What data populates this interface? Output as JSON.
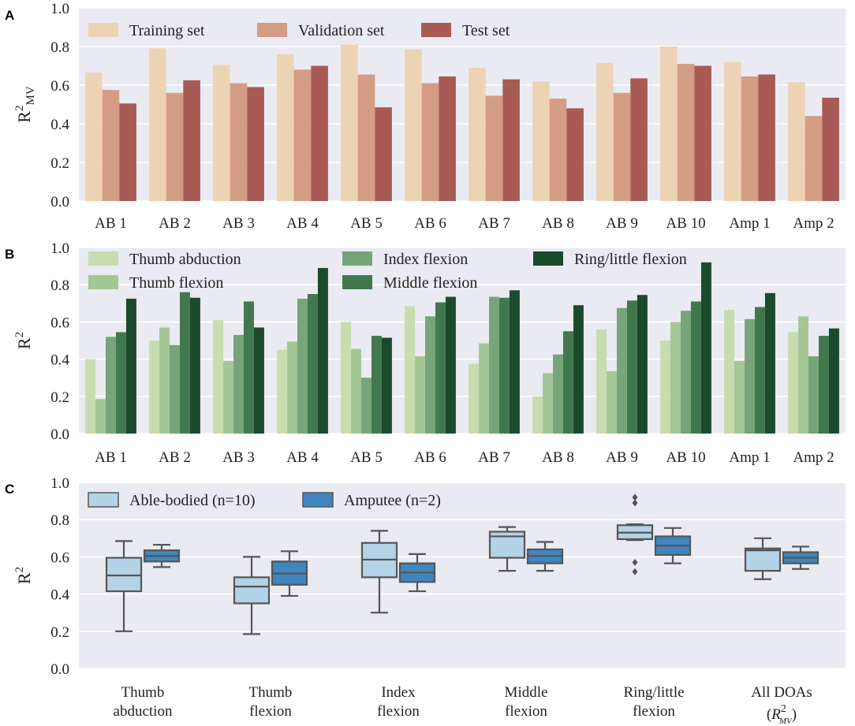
{
  "chart_data": [
    {
      "panel": "A",
      "type": "bar",
      "ylabel": "R",
      "ylabel_sup": "2",
      "ylabel_sub": "MV",
      "ylim": [
        0,
        1.0
      ],
      "yticks": [
        "0.0",
        "0.2",
        "0.4",
        "0.6",
        "0.8",
        "1.0"
      ],
      "grid": true,
      "legend_position": "top",
      "categories": [
        "AB 1",
        "AB 2",
        "AB 3",
        "AB 4",
        "AB 5",
        "AB 6",
        "AB 7",
        "AB 8",
        "AB 9",
        "AB 10",
        "Amp 1",
        "Amp 2"
      ],
      "series": [
        {
          "name": "Training set",
          "color": "#ecd3b4",
          "values": [
            0.665,
            0.79,
            0.705,
            0.76,
            0.81,
            0.785,
            0.69,
            0.62,
            0.715,
            0.8,
            0.72,
            0.615
          ]
        },
        {
          "name": "Validation set",
          "color": "#d59c84",
          "values": [
            0.575,
            0.56,
            0.61,
            0.68,
            0.655,
            0.61,
            0.545,
            0.53,
            0.56,
            0.71,
            0.645,
            0.44
          ]
        },
        {
          "name": "Test set",
          "color": "#a85a54",
          "values": [
            0.505,
            0.625,
            0.59,
            0.7,
            0.485,
            0.645,
            0.63,
            0.48,
            0.635,
            0.7,
            0.655,
            0.535
          ]
        }
      ]
    },
    {
      "panel": "B",
      "type": "bar",
      "ylabel": "R",
      "ylabel_sup": "2",
      "ylim": [
        0,
        1.0
      ],
      "yticks": [
        "0.0",
        "0.2",
        "0.4",
        "0.6",
        "0.8",
        "1.0"
      ],
      "grid": true,
      "legend_position": "top",
      "categories": [
        "AB 1",
        "AB 2",
        "AB 3",
        "AB 4",
        "AB 5",
        "AB 6",
        "AB 7",
        "AB 8",
        "AB 9",
        "AB 10",
        "Amp 1",
        "Amp 2"
      ],
      "series": [
        {
          "name": "Thumb abduction",
          "color": "#c8dcb0",
          "values": [
            0.4,
            0.5,
            0.61,
            0.45,
            0.6,
            0.685,
            0.375,
            0.2,
            0.56,
            0.5,
            0.665,
            0.545
          ]
        },
        {
          "name": "Thumb flexion",
          "color": "#a3c795",
          "values": [
            0.185,
            0.57,
            0.39,
            0.495,
            0.455,
            0.415,
            0.485,
            0.325,
            0.335,
            0.6,
            0.39,
            0.63
          ]
        },
        {
          "name": "Index flexion",
          "color": "#76a57a",
          "values": [
            0.52,
            0.475,
            0.53,
            0.725,
            0.3,
            0.63,
            0.735,
            0.425,
            0.675,
            0.66,
            0.615,
            0.415
          ]
        },
        {
          "name": "Middle flexion",
          "color": "#42784d",
          "values": [
            0.545,
            0.76,
            0.71,
            0.75,
            0.525,
            0.705,
            0.73,
            0.55,
            0.715,
            0.71,
            0.68,
            0.525
          ]
        },
        {
          "name": "Ring/little flexion",
          "color": "#1c4a2c",
          "values": [
            0.725,
            0.73,
            0.57,
            0.89,
            0.515,
            0.735,
            0.77,
            0.69,
            0.745,
            0.92,
            0.755,
            0.565
          ]
        }
      ]
    },
    {
      "panel": "C",
      "type": "box",
      "ylabel": "R",
      "ylabel_sup": "2",
      "ylim": [
        0,
        1.0
      ],
      "yticks": [
        "0.0",
        "0.2",
        "0.4",
        "0.6",
        "0.8",
        "1.0"
      ],
      "grid": true,
      "legend_position": "top-left",
      "categories": [
        {
          "lines": [
            "Thumb",
            "abduction"
          ]
        },
        {
          "lines": [
            "Thumb",
            "flexion"
          ]
        },
        {
          "lines": [
            "Index",
            "flexion"
          ]
        },
        {
          "lines": [
            "Middle",
            "flexion"
          ]
        },
        {
          "lines": [
            "Ring/little",
            "flexion"
          ]
        },
        {
          "lines": [
            "All DOAs"
          ],
          "math": {
            "base": "R",
            "sup": "2",
            "sub": "MV"
          }
        }
      ],
      "series": [
        {
          "name": "Able-bodied (n=10)",
          "color": "#b3d3e6",
          "boxes": [
            {
              "whisker_low": 0.2,
              "q1": 0.415,
              "median": 0.5,
              "q3": 0.595,
              "whisker_high": 0.685,
              "outliers": []
            },
            {
              "whisker_low": 0.185,
              "q1": 0.35,
              "median": 0.44,
              "q3": 0.49,
              "whisker_high": 0.6,
              "outliers": []
            },
            {
              "whisker_low": 0.3,
              "q1": 0.49,
              "median": 0.585,
              "q3": 0.675,
              "whisker_high": 0.74,
              "outliers": []
            },
            {
              "whisker_low": 0.525,
              "q1": 0.595,
              "median": 0.71,
              "q3": 0.735,
              "whisker_high": 0.76,
              "outliers": []
            },
            {
              "whisker_low": 0.69,
              "q1": 0.695,
              "median": 0.73,
              "q3": 0.77,
              "whisker_high": 0.775,
              "outliers": [
                0.52,
                0.57,
                0.89,
                0.92
              ]
            },
            {
              "whisker_low": 0.48,
              "q1": 0.525,
              "median": 0.635,
              "q3": 0.645,
              "whisker_high": 0.7,
              "outliers": []
            }
          ]
        },
        {
          "name": "Amputee (n=2)",
          "color": "#3f86be",
          "boxes": [
            {
              "whisker_low": 0.545,
              "q1": 0.575,
              "median": 0.605,
              "q3": 0.635,
              "whisker_high": 0.665,
              "outliers": []
            },
            {
              "whisker_low": 0.39,
              "q1": 0.45,
              "median": 0.51,
              "q3": 0.575,
              "whisker_high": 0.63,
              "outliers": []
            },
            {
              "whisker_low": 0.415,
              "q1": 0.465,
              "median": 0.515,
              "q3": 0.565,
              "whisker_high": 0.615,
              "outliers": []
            },
            {
              "whisker_low": 0.525,
              "q1": 0.565,
              "median": 0.605,
              "q3": 0.64,
              "whisker_high": 0.68,
              "outliers": []
            },
            {
              "whisker_low": 0.565,
              "q1": 0.61,
              "median": 0.66,
              "q3": 0.71,
              "whisker_high": 0.755,
              "outliers": []
            },
            {
              "whisker_low": 0.535,
              "q1": 0.565,
              "median": 0.595,
              "q3": 0.625,
              "whisker_high": 0.655,
              "outliers": []
            }
          ]
        }
      ]
    }
  ]
}
